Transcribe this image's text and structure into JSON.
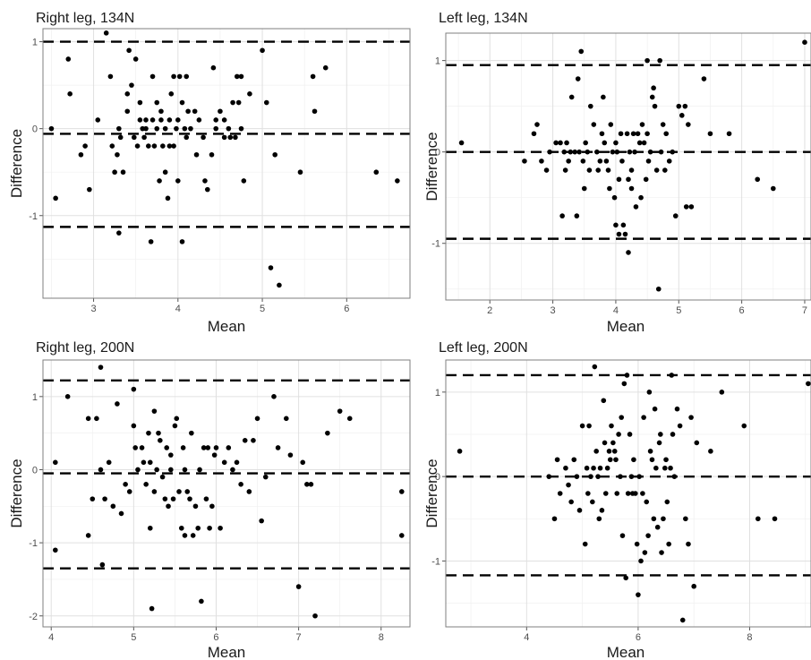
{
  "chart_data": [
    {
      "type": "scatter",
      "title": "Right leg, 134N",
      "xlabel": "Mean",
      "ylabel": "Difference",
      "xlim": [
        2.4,
        6.75
      ],
      "ylim": [
        -1.95,
        1.15
      ],
      "xticks": [
        "3",
        "4",
        "5",
        "6"
      ],
      "yticks": [
        "-1",
        "0",
        "1"
      ],
      "grid": true,
      "hlines": [
        1.0,
        -0.06,
        -1.13
      ],
      "x": [
        2.5,
        2.55,
        2.7,
        2.72,
        2.85,
        2.9,
        2.95,
        3.05,
        3.15,
        3.2,
        3.22,
        3.25,
        3.28,
        3.3,
        3.3,
        3.32,
        3.35,
        3.4,
        3.4,
        3.42,
        3.45,
        3.48,
        3.5,
        3.52,
        3.55,
        3.55,
        3.58,
        3.6,
        3.62,
        3.62,
        3.65,
        3.68,
        3.7,
        3.7,
        3.72,
        3.75,
        3.75,
        3.78,
        3.8,
        3.8,
        3.82,
        3.85,
        3.85,
        3.88,
        3.9,
        3.9,
        3.92,
        3.95,
        3.95,
        3.98,
        4.0,
        4.0,
        4.02,
        4.05,
        4.05,
        4.08,
        4.1,
        4.1,
        4.12,
        4.15,
        4.2,
        4.22,
        4.25,
        4.3,
        4.32,
        4.35,
        4.4,
        4.42,
        4.45,
        4.45,
        4.5,
        4.55,
        4.55,
        4.6,
        4.62,
        4.65,
        4.68,
        4.7,
        4.72,
        4.75,
        4.75,
        4.78,
        4.85,
        5.0,
        5.05,
        5.1,
        5.15,
        5.2,
        5.45,
        5.6,
        5.62,
        5.75,
        6.35,
        6.6
      ],
      "y": [
        0.0,
        -0.8,
        0.8,
        0.4,
        -0.3,
        -0.2,
        -0.7,
        0.1,
        1.1,
        0.6,
        -0.2,
        -0.5,
        -0.3,
        0.0,
        -1.2,
        -0.1,
        -0.5,
        0.4,
        0.2,
        0.9,
        0.5,
        -0.1,
        0.8,
        -0.2,
        0.3,
        0.1,
        0.0,
        -0.1,
        0.1,
        0.0,
        -0.2,
        -1.3,
        0.6,
        0.1,
        -0.2,
        0.3,
        0.0,
        -0.6,
        0.2,
        0.1,
        -0.2,
        0.0,
        -0.5,
        -0.8,
        0.1,
        -0.2,
        0.4,
        0.6,
        -0.2,
        0.0,
        0.1,
        -0.6,
        0.6,
        0.3,
        -1.3,
        0.0,
        0.6,
        -0.1,
        0.2,
        0.0,
        0.2,
        -0.3,
        0.1,
        -0.1,
        -0.6,
        -0.7,
        -0.3,
        0.7,
        0.0,
        0.1,
        0.2,
        -0.1,
        0.1,
        0.0,
        -0.1,
        0.3,
        -0.1,
        0.6,
        0.3,
        0.6,
        0.0,
        -0.6,
        0.4,
        0.9,
        0.3,
        -1.6,
        -0.3,
        -1.8,
        -0.5,
        0.6,
        0.2,
        0.7,
        -0.5,
        -0.6
      ]
    },
    {
      "type": "scatter",
      "title": "Left leg, 134N",
      "xlabel": "Mean",
      "ylabel": "Difference",
      "xlim": [
        1.3,
        7.1
      ],
      "ylim": [
        -1.62,
        1.3
      ],
      "xticks": [
        "2",
        "3",
        "4",
        "5",
        "6",
        "7"
      ],
      "yticks": [
        "-1",
        "0",
        "1"
      ],
      "grid": true,
      "hlines": [
        0.95,
        0.0,
        -0.95
      ],
      "x": [
        1.55,
        2.55,
        2.7,
        2.75,
        2.82,
        2.9,
        2.95,
        3.05,
        3.12,
        3.15,
        3.18,
        3.2,
        3.22,
        3.25,
        3.28,
        3.3,
        3.35,
        3.38,
        3.4,
        3.42,
        3.45,
        3.48,
        3.5,
        3.52,
        3.55,
        3.58,
        3.6,
        3.65,
        3.7,
        3.72,
        3.75,
        3.78,
        3.8,
        3.82,
        3.85,
        3.88,
        3.9,
        3.92,
        3.95,
        3.98,
        4.0,
        4.0,
        4.02,
        4.05,
        4.05,
        4.08,
        4.1,
        4.12,
        4.15,
        4.18,
        4.2,
        4.2,
        4.22,
        4.25,
        4.25,
        4.28,
        4.3,
        4.32,
        4.35,
        4.38,
        4.4,
        4.42,
        4.45,
        4.48,
        4.5,
        4.5,
        4.52,
        4.55,
        4.58,
        4.6,
        4.62,
        4.65,
        4.68,
        4.7,
        4.72,
        4.75,
        4.78,
        4.8,
        4.85,
        4.9,
        4.95,
        5.0,
        5.05,
        5.1,
        5.12,
        5.15,
        5.2,
        5.4,
        5.5,
        5.8,
        6.25,
        6.5,
        7.0
      ],
      "y": [
        0.1,
        -0.1,
        0.2,
        0.3,
        -0.1,
        -0.2,
        0.0,
        0.1,
        0.1,
        -0.7,
        0.0,
        -0.2,
        0.1,
        -0.1,
        0.0,
        0.6,
        0.0,
        -0.7,
        0.8,
        0.0,
        1.1,
        -0.1,
        -0.4,
        0.1,
        0.0,
        -0.2,
        0.5,
        0.3,
        0.0,
        -0.2,
        -0.1,
        0.2,
        0.6,
        0.1,
        -0.1,
        -0.2,
        -0.4,
        0.3,
        0.0,
        -0.5,
        0.1,
        -0.8,
        0.0,
        -0.3,
        -0.9,
        0.2,
        -0.1,
        -0.8,
        -0.9,
        0.2,
        -0.3,
        -1.1,
        0.0,
        -0.2,
        -0.4,
        0.2,
        0.0,
        -0.6,
        0.2,
        0.1,
        -0.5,
        0.3,
        0.1,
        -0.3,
        1.0,
        0.2,
        -0.1,
        0.0,
        0.6,
        0.7,
        0.5,
        -0.2,
        -1.5,
        1.0,
        0.0,
        0.3,
        -0.2,
        0.2,
        -0.1,
        0.0,
        -0.7,
        0.5,
        0.4,
        0.5,
        -0.6,
        0.3,
        -0.6,
        0.8,
        0.2,
        0.2,
        -0.3,
        -0.4,
        1.2
      ]
    },
    {
      "type": "scatter",
      "title": "Right leg, 200N",
      "xlabel": "Mean",
      "ylabel": "Difference",
      "xlim": [
        3.9,
        8.35
      ],
      "ylim": [
        -2.15,
        1.5
      ],
      "xticks": [
        "4",
        "5",
        "6",
        "7",
        "8"
      ],
      "yticks": [
        "-2",
        "-1",
        "0",
        "1"
      ],
      "grid": true,
      "hlines": [
        1.22,
        -0.05,
        -1.35
      ],
      "x": [
        4.05,
        4.05,
        4.2,
        4.45,
        4.45,
        4.5,
        4.55,
        4.6,
        4.6,
        4.62,
        4.65,
        4.7,
        4.75,
        4.8,
        4.85,
        4.9,
        4.95,
        5.0,
        5.0,
        5.02,
        5.05,
        5.1,
        5.12,
        5.15,
        5.18,
        5.2,
        5.2,
        5.22,
        5.25,
        5.25,
        5.28,
        5.3,
        5.32,
        5.35,
        5.38,
        5.4,
        5.42,
        5.45,
        5.45,
        5.48,
        5.5,
        5.52,
        5.55,
        5.58,
        5.6,
        5.62,
        5.62,
        5.65,
        5.68,
        5.7,
        5.72,
        5.75,
        5.78,
        5.8,
        5.82,
        5.85,
        5.88,
        5.9,
        5.92,
        5.95,
        5.98,
        6.0,
        6.05,
        6.1,
        6.15,
        6.2,
        6.25,
        6.3,
        6.35,
        6.4,
        6.45,
        6.5,
        6.55,
        6.6,
        6.7,
        6.75,
        6.85,
        6.9,
        7.0,
        7.05,
        7.1,
        7.15,
        7.2,
        7.35,
        7.5,
        7.62,
        8.25,
        8.25
      ],
      "y": [
        0.1,
        -1.1,
        1.0,
        0.7,
        -0.9,
        -0.4,
        0.7,
        1.4,
        0.0,
        -1.3,
        -0.4,
        0.1,
        -0.5,
        0.9,
        -0.6,
        -0.2,
        -0.3,
        0.6,
        1.1,
        0.3,
        0.0,
        0.3,
        0.1,
        -0.2,
        0.5,
        -0.8,
        0.1,
        -1.9,
        0.8,
        -0.3,
        0.0,
        0.5,
        0.4,
        -0.1,
        -0.4,
        0.3,
        -0.5,
        0.2,
        0.0,
        -0.4,
        0.6,
        0.7,
        -0.3,
        -0.8,
        0.3,
        -0.9,
        0.0,
        -0.3,
        -0.4,
        0.5,
        -0.9,
        -0.5,
        -0.8,
        0.0,
        -1.8,
        0.3,
        -0.4,
        0.3,
        -0.8,
        -0.5,
        0.2,
        0.3,
        -0.8,
        0.1,
        0.3,
        0.0,
        0.1,
        -0.2,
        0.4,
        -0.3,
        0.4,
        0.7,
        -0.7,
        -0.1,
        1.0,
        0.3,
        0.7,
        0.2,
        -1.6,
        0.1,
        -0.2,
        -0.2,
        -2.0,
        0.5,
        0.8,
        0.7,
        -0.3,
        -0.9
      ]
    },
    {
      "type": "scatter",
      "title": "Left leg, 200N",
      "xlabel": "Mean",
      "ylabel": "Difference",
      "xlim": [
        2.55,
        9.1
      ],
      "ylim": [
        -1.78,
        1.38
      ],
      "xticks": [
        "4",
        "6",
        "8"
      ],
      "yticks": [
        "-1",
        "0",
        "1"
      ],
      "grid": true,
      "hlines": [
        1.2,
        0.0,
        -1.17
      ],
      "x": [
        2.8,
        4.4,
        4.5,
        4.55,
        4.6,
        4.7,
        4.75,
        4.8,
        4.85,
        4.9,
        4.95,
        5.0,
        5.05,
        5.08,
        5.1,
        5.12,
        5.15,
        5.18,
        5.2,
        5.22,
        5.25,
        5.28,
        5.3,
        5.32,
        5.35,
        5.38,
        5.4,
        5.42,
        5.45,
        5.48,
        5.5,
        5.52,
        5.55,
        5.58,
        5.6,
        5.62,
        5.65,
        5.68,
        5.7,
        5.72,
        5.75,
        5.78,
        5.8,
        5.82,
        5.85,
        5.88,
        5.9,
        5.92,
        5.95,
        5.98,
        6.0,
        6.02,
        6.05,
        6.08,
        6.1,
        6.12,
        6.15,
        6.18,
        6.2,
        6.22,
        6.25,
        6.28,
        6.3,
        6.32,
        6.35,
        6.38,
        6.4,
        6.42,
        6.45,
        6.48,
        6.5,
        6.52,
        6.55,
        6.58,
        6.6,
        6.62,
        6.65,
        6.7,
        6.75,
        6.8,
        6.85,
        6.9,
        6.95,
        7.0,
        7.05,
        7.3,
        7.5,
        7.9,
        8.15,
        8.45,
        9.05
      ],
      "y": [
        0.3,
        0.0,
        -0.5,
        0.2,
        -0.2,
        0.1,
        -0.1,
        -0.3,
        0.2,
        0.0,
        -0.4,
        0.6,
        -0.8,
        0.1,
        -0.2,
        0.6,
        0.0,
        -0.3,
        0.1,
        1.3,
        0.3,
        0.0,
        -0.5,
        0.1,
        -0.4,
        0.9,
        0.4,
        -0.2,
        0.1,
        0.3,
        0.2,
        0.6,
        0.4,
        0.3,
        0.2,
        -0.2,
        0.5,
        0.0,
        0.7,
        -0.7,
        1.1,
        -1.2,
        1.2,
        -0.2,
        0.5,
        0.0,
        -0.2,
        0.2,
        -0.2,
        -0.8,
        -1.4,
        0.0,
        -1.0,
        -0.2,
        0.7,
        -0.9,
        -0.3,
        -0.7,
        1.0,
        0.3,
        0.2,
        -0.5,
        0.8,
        0.1,
        -0.6,
        0.4,
        0.5,
        -0.9,
        -0.5,
        0.1,
        0.2,
        -0.3,
        -0.8,
        0.1,
        1.2,
        0.5,
        0.0,
        0.8,
        0.6,
        -1.7,
        -0.5,
        -0.8,
        0.7,
        -1.3,
        0.4,
        0.3,
        1.0,
        0.6,
        -0.5,
        -0.5,
        1.1
      ]
    }
  ]
}
